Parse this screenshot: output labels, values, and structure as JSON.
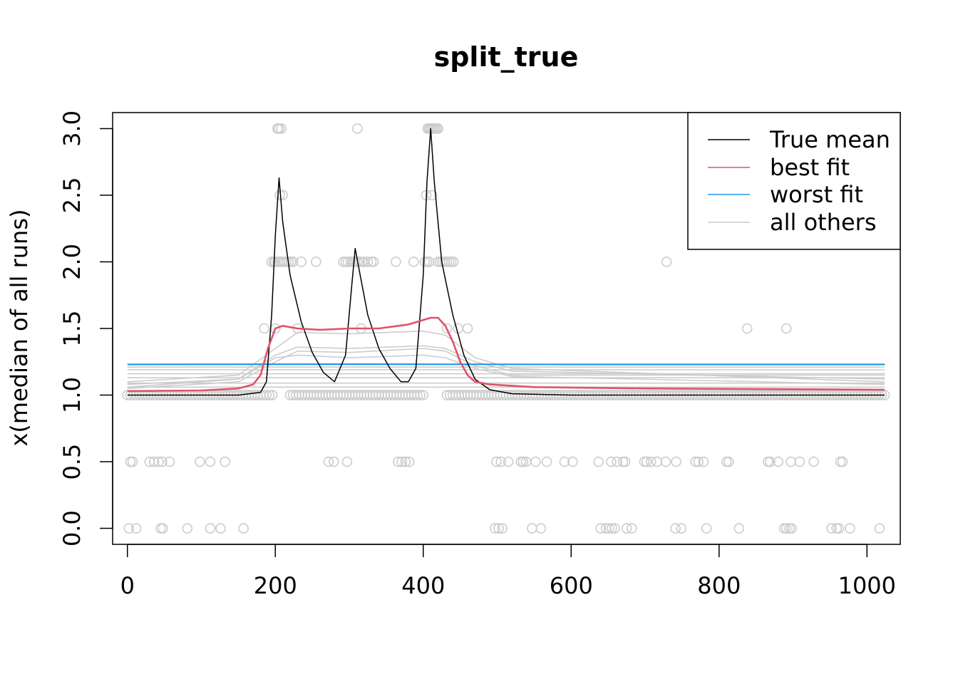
{
  "chart_data": {
    "type": "line",
    "title": "split_true",
    "xlabel": "",
    "ylabel": "x(median of all runs)",
    "xlim": [
      -20,
      1045
    ],
    "ylim": [
      -0.12,
      3.12
    ],
    "x_ticks": [
      0,
      200,
      400,
      600,
      800,
      1000
    ],
    "y_ticks": [
      0.0,
      0.5,
      1.0,
      1.5,
      2.0,
      2.5,
      3.0
    ],
    "x_tick_labels": [
      "0",
      "200",
      "400",
      "600",
      "800",
      "1000"
    ],
    "y_tick_labels": [
      "0.0",
      "0.5",
      "1.0",
      "1.5",
      "2.0",
      "2.5",
      "3.0"
    ],
    "legend": {
      "position": "top-right",
      "entries": [
        {
          "label": "True mean",
          "color": "#000000"
        },
        {
          "label": "best fit",
          "color": "#DF536B"
        },
        {
          "label": "worst fit",
          "color": "#2297E6"
        },
        {
          "label": "all others",
          "color": "#CCCCCC"
        }
      ]
    },
    "colors": {
      "true_mean": "#000000",
      "best_fit": "#DF536B",
      "worst_fit": "#2297E6",
      "others": "#CCCCCC",
      "points": "#CCCCCC"
    },
    "series": [
      {
        "name": "True mean",
        "x": [
          0,
          150,
          180,
          188,
          195,
          200,
          205,
          210,
          220,
          235,
          250,
          265,
          280,
          295,
          303,
          308,
          313,
          325,
          340,
          355,
          370,
          380,
          390,
          400,
          405,
          410,
          415,
          425,
          440,
          455,
          470,
          490,
          520,
          600,
          800,
          1024
        ],
        "y": [
          1.0,
          1.0,
          1.02,
          1.1,
          1.6,
          2.2,
          2.63,
          2.3,
          1.9,
          1.55,
          1.32,
          1.17,
          1.1,
          1.3,
          1.8,
          2.1,
          1.95,
          1.6,
          1.35,
          1.2,
          1.1,
          1.1,
          1.2,
          1.9,
          2.6,
          3.0,
          2.6,
          2.0,
          1.6,
          1.3,
          1.12,
          1.04,
          1.01,
          1.0,
          1.0,
          1.0
        ]
      },
      {
        "name": "best fit",
        "x": [
          0,
          100,
          150,
          170,
          180,
          190,
          200,
          210,
          230,
          260,
          300,
          340,
          380,
          410,
          420,
          430,
          440,
          450,
          460,
          470,
          490,
          550,
          700,
          1024
        ],
        "y": [
          1.03,
          1.035,
          1.05,
          1.08,
          1.15,
          1.35,
          1.5,
          1.52,
          1.5,
          1.49,
          1.5,
          1.5,
          1.53,
          1.58,
          1.58,
          1.52,
          1.4,
          1.25,
          1.15,
          1.1,
          1.08,
          1.06,
          1.05,
          1.04
        ]
      },
      {
        "name": "worst fit",
        "x": [
          0,
          300,
          600,
          1024
        ],
        "y": [
          1.23,
          1.232,
          1.23,
          1.23
        ]
      }
    ],
    "other_fits": [
      {
        "x": [
          0,
          150,
          200,
          230,
          300,
          400,
          430,
          470,
          520,
          1024
        ],
        "y": [
          1.05,
          1.1,
          1.25,
          1.33,
          1.32,
          1.35,
          1.33,
          1.22,
          1.15,
          1.15
        ]
      },
      {
        "x": [
          0,
          150,
          200,
          230,
          300,
          400,
          430,
          470,
          520,
          1024
        ],
        "y": [
          1.08,
          1.12,
          1.3,
          1.36,
          1.35,
          1.37,
          1.35,
          1.25,
          1.18,
          1.12
        ]
      },
      {
        "x": [
          0,
          150,
          200,
          230,
          300,
          400,
          430,
          470,
          520,
          1024
        ],
        "y": [
          1.1,
          1.15,
          1.35,
          1.47,
          1.46,
          1.48,
          1.45,
          1.28,
          1.2,
          1.1
        ]
      },
      {
        "x": [
          0,
          150,
          200,
          230,
          300,
          400,
          430,
          470,
          520,
          1024
        ],
        "y": [
          1.06,
          1.12,
          1.28,
          1.3,
          1.28,
          1.3,
          1.28,
          1.2,
          1.14,
          1.08
        ]
      },
      {
        "x": [
          0,
          1024
        ],
        "y": [
          1.06,
          1.06
        ]
      },
      {
        "x": [
          0,
          1024
        ],
        "y": [
          1.09,
          1.09
        ]
      },
      {
        "x": [
          0,
          1024
        ],
        "y": [
          1.13,
          1.13
        ]
      },
      {
        "x": [
          0,
          1024
        ],
        "y": [
          1.16,
          1.16
        ]
      },
      {
        "x": [
          0,
          1024
        ],
        "y": [
          1.19,
          1.19
        ]
      },
      {
        "x": [
          0,
          1024
        ],
        "y": [
          1.21,
          1.21
        ]
      }
    ],
    "points": [
      {
        "y": 3.0,
        "x": [
          203,
          205,
          208,
          311,
          406,
          408,
          410,
          412,
          414,
          416,
          418,
          420
        ]
      },
      {
        "y": 2.5,
        "x": [
          206,
          210,
          404,
          412
        ]
      },
      {
        "y": 2.0,
        "x": [
          195,
          198,
          200,
          203,
          206,
          209,
          212,
          215,
          218,
          221,
          224,
          235,
          255,
          292,
          295,
          298,
          302,
          305,
          308,
          311,
          314,
          317,
          320,
          325,
          330,
          333,
          363,
          387,
          402,
          405,
          408,
          420,
          423,
          426,
          429,
          432,
          435,
          438,
          441,
          729
        ]
      },
      {
        "y": 1.5,
        "x": [
          185,
          200,
          230,
          316,
          432,
          447,
          460,
          838,
          891
        ]
      },
      {
        "y": 1.0,
        "x_range": [
          0,
          1024
        ]
      },
      {
        "y": 0.5,
        "x": [
          4,
          7,
          30,
          36,
          42,
          47,
          57,
          98,
          112,
          132,
          272,
          279,
          297,
          366,
          371,
          376,
          381,
          499,
          505,
          515,
          532,
          535,
          539,
          552,
          567,
          591,
          602,
          637,
          654,
          662,
          670,
          673,
          699,
          702,
          708,
          716,
          728,
          742,
          768,
          772,
          779,
          810,
          813,
          866,
          869,
          880,
          897,
          909,
          928,
          964,
          967
        ]
      },
      {
        "y": 0.0,
        "x": [
          2,
          12,
          45,
          48,
          81,
          112,
          126,
          157,
          497,
          502,
          507,
          547,
          559,
          640,
          647,
          651,
          655,
          659,
          675,
          682,
          741,
          749,
          783,
          827,
          888,
          891,
          895,
          898,
          952,
          959,
          962,
          977,
          1017
        ]
      }
    ]
  }
}
